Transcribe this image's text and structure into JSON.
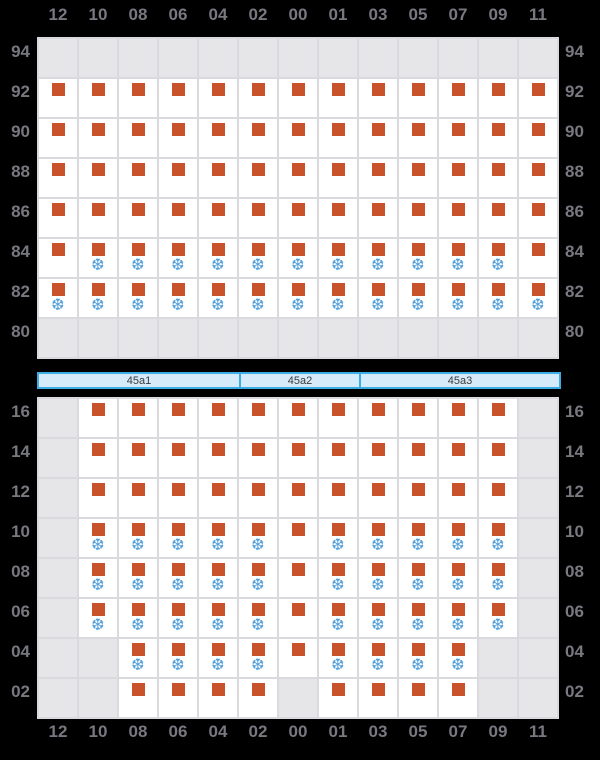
{
  "columns": [
    "12",
    "10",
    "08",
    "06",
    "04",
    "02",
    "00",
    "01",
    "03",
    "05",
    "07",
    "09",
    "11"
  ],
  "deck": {
    "tiers": [
      {
        "label": "94",
        "cells": [
          "empty",
          "empty",
          "empty",
          "empty",
          "empty",
          "empty",
          "empty",
          "empty",
          "empty",
          "empty",
          "empty",
          "empty",
          "empty"
        ]
      },
      {
        "label": "92",
        "cells": [
          "container",
          "container",
          "container",
          "container",
          "container",
          "container",
          "container",
          "container",
          "container",
          "container",
          "container",
          "container",
          "container"
        ]
      },
      {
        "label": "90",
        "cells": [
          "container",
          "container",
          "container",
          "container",
          "container",
          "container",
          "container",
          "container",
          "container",
          "container",
          "container",
          "container",
          "container"
        ]
      },
      {
        "label": "88",
        "cells": [
          "container",
          "container",
          "container",
          "container",
          "container",
          "container",
          "container",
          "container",
          "container",
          "container",
          "container",
          "container",
          "container"
        ]
      },
      {
        "label": "86",
        "cells": [
          "container",
          "container",
          "container",
          "container",
          "container",
          "container",
          "container",
          "container",
          "container",
          "container",
          "container",
          "container",
          "container"
        ]
      },
      {
        "label": "84",
        "cells": [
          "container",
          "reefer",
          "reefer",
          "reefer",
          "reefer",
          "reefer",
          "reefer",
          "reefer",
          "reefer",
          "reefer",
          "reefer",
          "reefer",
          "container"
        ]
      },
      {
        "label": "82",
        "cells": [
          "reefer",
          "reefer",
          "reefer",
          "reefer",
          "reefer",
          "reefer",
          "reefer",
          "reefer",
          "reefer",
          "reefer",
          "reefer",
          "reefer",
          "reefer"
        ]
      },
      {
        "label": "80",
        "cells": [
          "empty",
          "empty",
          "empty",
          "empty",
          "empty",
          "empty",
          "empty",
          "empty",
          "empty",
          "empty",
          "empty",
          "empty",
          "empty"
        ]
      }
    ]
  },
  "hatch_bar": {
    "segments": [
      {
        "label": "45a1",
        "span": 5
      },
      {
        "label": "45a2",
        "span": 3
      },
      {
        "label": "45a3",
        "span": 5
      }
    ]
  },
  "hold": {
    "tiers": [
      {
        "label": "16",
        "cells": [
          "empty",
          "container",
          "container",
          "container",
          "container",
          "container",
          "container",
          "container",
          "container",
          "container",
          "container",
          "container",
          "empty"
        ]
      },
      {
        "label": "14",
        "cells": [
          "empty",
          "container",
          "container",
          "container",
          "container",
          "container",
          "container",
          "container",
          "container",
          "container",
          "container",
          "container",
          "empty"
        ]
      },
      {
        "label": "12",
        "cells": [
          "empty",
          "container",
          "container",
          "container",
          "container",
          "container",
          "container",
          "container",
          "container",
          "container",
          "container",
          "container",
          "empty"
        ]
      },
      {
        "label": "10",
        "cells": [
          "empty",
          "reefer",
          "reefer",
          "reefer",
          "reefer",
          "reefer",
          "container",
          "reefer",
          "reefer",
          "reefer",
          "reefer",
          "reefer",
          "empty"
        ]
      },
      {
        "label": "08",
        "cells": [
          "empty",
          "reefer",
          "reefer",
          "reefer",
          "reefer",
          "reefer",
          "container",
          "reefer",
          "reefer",
          "reefer",
          "reefer",
          "reefer",
          "empty"
        ]
      },
      {
        "label": "06",
        "cells": [
          "empty",
          "reefer",
          "reefer",
          "reefer",
          "reefer",
          "reefer",
          "container",
          "reefer",
          "reefer",
          "reefer",
          "reefer",
          "reefer",
          "empty"
        ]
      },
      {
        "label": "04",
        "cells": [
          "empty",
          "empty",
          "reefer",
          "reefer",
          "reefer",
          "reefer",
          "container",
          "reefer",
          "reefer",
          "reefer",
          "reefer",
          "empty",
          "empty"
        ]
      },
      {
        "label": "02",
        "cells": [
          "empty",
          "empty",
          "container",
          "container",
          "container",
          "container",
          "empty",
          "container",
          "container",
          "container",
          "container",
          "empty",
          "empty"
        ]
      }
    ]
  },
  "icons": {
    "snowflake_glyph": "❆",
    "container_icon": "square-icon",
    "reefer_icon": "snowflake-icon"
  },
  "colors": {
    "background": "#000000",
    "container_square": "#c8532a",
    "snowflake": "#58a2da",
    "cell_white": "#ffffff",
    "cell_empty": "#e6e6e9",
    "grid_line": "#d9d9de",
    "label_text": "#787880",
    "hatch_fill": "#d5ebfa",
    "hatch_border": "#3cace5",
    "hatch_text": "#3a3a3a"
  }
}
